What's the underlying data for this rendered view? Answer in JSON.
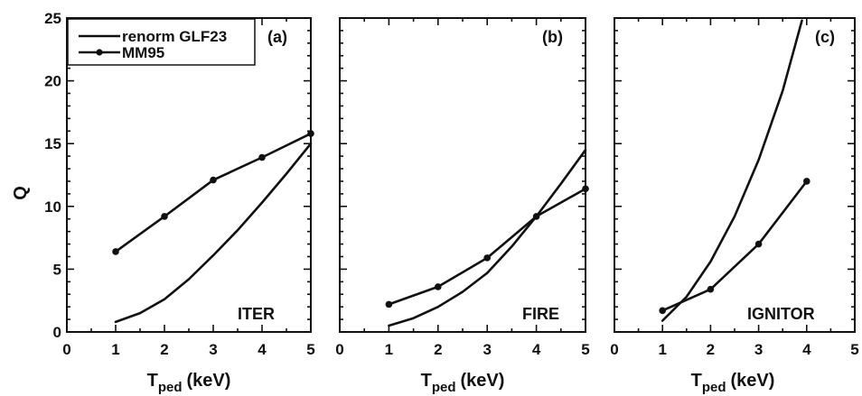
{
  "chart_data": [
    {
      "type": "line",
      "panel_label": "(a)",
      "annotation": "ITER",
      "xlabel": "T",
      "xlabel_sub": "ped",
      "xlabel_unit": "(keV)",
      "ylabel": "Q",
      "xlim": [
        0,
        5
      ],
      "ylim": [
        0,
        25
      ],
      "xticks": [
        0,
        1,
        2,
        3,
        4,
        5
      ],
      "yticks": [
        0,
        5,
        10,
        15,
        20,
        25
      ],
      "legend": {
        "position": "top-left",
        "entries": [
          "renorm GLF23",
          "MM95"
        ]
      },
      "series": [
        {
          "name": "renorm GLF23",
          "markers": false,
          "x": [
            1.0,
            1.5,
            2.0,
            2.5,
            3.0,
            3.5,
            4.0,
            4.5,
            5.0
          ],
          "y": [
            0.8,
            1.5,
            2.6,
            4.2,
            6.1,
            8.1,
            10.3,
            12.6,
            15.0
          ]
        },
        {
          "name": "MM95",
          "markers": true,
          "x": [
            1.0,
            2.0,
            3.0,
            4.0,
            5.0
          ],
          "y": [
            6.4,
            9.2,
            12.1,
            13.9,
            15.8
          ]
        }
      ]
    },
    {
      "type": "line",
      "panel_label": "(b)",
      "annotation": "FIRE",
      "xlabel": "T",
      "xlabel_sub": "ped",
      "xlabel_unit": "(keV)",
      "xlim": [
        0,
        5
      ],
      "ylim": [
        0,
        25
      ],
      "xticks": [
        0,
        1,
        2,
        3,
        4,
        5
      ],
      "series": [
        {
          "name": "renorm GLF23",
          "markers": false,
          "x": [
            1.0,
            1.5,
            2.0,
            2.5,
            3.0,
            3.5,
            4.0,
            4.5,
            5.0
          ],
          "y": [
            0.5,
            1.1,
            2.0,
            3.2,
            4.7,
            6.8,
            9.2,
            11.8,
            14.5
          ]
        },
        {
          "name": "MM95",
          "markers": true,
          "x": [
            1.0,
            2.0,
            3.0,
            4.0,
            5.0
          ],
          "y": [
            2.2,
            3.6,
            5.9,
            9.2,
            11.4
          ]
        }
      ]
    },
    {
      "type": "line",
      "panel_label": "(c)",
      "annotation": "IGNITOR",
      "xlabel": "T",
      "xlabel_sub": "ped",
      "xlabel_unit": "(keV)",
      "xlim": [
        0,
        5
      ],
      "ylim": [
        0,
        25
      ],
      "xticks": [
        0,
        1,
        2,
        3,
        4,
        5
      ],
      "series": [
        {
          "name": "renorm GLF23",
          "markers": false,
          "x": [
            1.0,
            1.5,
            2.0,
            2.5,
            3.0,
            3.5,
            3.9
          ],
          "y": [
            0.9,
            2.8,
            5.6,
            9.2,
            13.7,
            19.2,
            24.8
          ]
        },
        {
          "name": "MM95",
          "markers": true,
          "x": [
            1.0,
            2.0,
            3.0,
            4.0
          ],
          "y": [
            1.7,
            3.4,
            7.0,
            12.0
          ]
        }
      ]
    }
  ]
}
